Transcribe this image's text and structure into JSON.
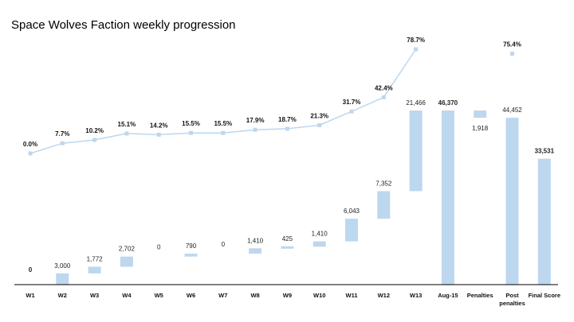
{
  "title": "Space Wolves Faction weekly progression",
  "colors": {
    "bar": "#bdd7ee",
    "line": "#bdd7ee",
    "marker": "#bdd7ee",
    "axis": "#000000"
  },
  "chart_data": {
    "type": "waterfall+line",
    "title": "Space Wolves Faction weekly progression",
    "categories": [
      "W1",
      "W2",
      "W3",
      "W4",
      "W5",
      "W6",
      "W7",
      "W8",
      "W9",
      "W10",
      "W11",
      "W12",
      "W13",
      "Aug-15",
      "Penalties",
      "Post penalties",
      "Final Score"
    ],
    "category_labels": [
      [
        "W1"
      ],
      [
        "W2"
      ],
      [
        "W3"
      ],
      [
        "W4"
      ],
      [
        "W5"
      ],
      [
        "W6"
      ],
      [
        "W7"
      ],
      [
        "W8"
      ],
      [
        "W9"
      ],
      [
        "W10"
      ],
      [
        "W11"
      ],
      [
        "W12"
      ],
      [
        "W13"
      ],
      [
        "Aug-15"
      ],
      [
        "Penalties"
      ],
      [
        "Post",
        "penalties"
      ],
      [
        "Final Score"
      ]
    ],
    "bars": [
      {
        "category": "W1",
        "start": 0,
        "end": 0,
        "label": "0",
        "total": true
      },
      {
        "category": "W2",
        "start": 0,
        "end": 3000,
        "label": "3,000",
        "total": false
      },
      {
        "category": "W3",
        "start": 3000,
        "end": 4772,
        "label": "1,772",
        "total": false
      },
      {
        "category": "W4",
        "start": 4772,
        "end": 7474,
        "label": "2,702",
        "total": false
      },
      {
        "category": "W5",
        "start": 7474,
        "end": 7474,
        "label": "0",
        "total": false
      },
      {
        "category": "W6",
        "start": 7474,
        "end": 8264,
        "label": "790",
        "total": false
      },
      {
        "category": "W7",
        "start": 8264,
        "end": 8264,
        "label": "0",
        "total": false
      },
      {
        "category": "W8",
        "start": 8264,
        "end": 9674,
        "label": "1,410",
        "total": false
      },
      {
        "category": "W9",
        "start": 9674,
        "end": 10099,
        "label": "425",
        "total": false
      },
      {
        "category": "W10",
        "start": 10099,
        "end": 11509,
        "label": "1,410",
        "total": false
      },
      {
        "category": "W11",
        "start": 11509,
        "end": 17552,
        "label": "6,043",
        "total": false
      },
      {
        "category": "W12",
        "start": 17552,
        "end": 24904,
        "label": "7,352",
        "total": false
      },
      {
        "category": "W13",
        "start": 24904,
        "end": 46370,
        "label": "21,466",
        "total": false
      },
      {
        "category": "Aug-15",
        "start": 0,
        "end": 46370,
        "label": "46,370",
        "total": true
      },
      {
        "category": "Penalties",
        "start": 44452,
        "end": 46370,
        "label": "1,918",
        "total": false
      },
      {
        "category": "Post penalties",
        "start": 0,
        "end": 44452,
        "label": "44,452",
        "total": false
      },
      {
        "category": "Final Score",
        "start": 0,
        "end": 33531,
        "label": "33,531",
        "total": true
      }
    ],
    "line_series": {
      "values": [
        0.0,
        7.7,
        10.2,
        15.1,
        14.2,
        15.5,
        15.5,
        17.9,
        18.7,
        21.3,
        31.7,
        42.4,
        78.7,
        null,
        null,
        75.4,
        null
      ],
      "labels": [
        "0.0%",
        "7.7%",
        "10.2%",
        "15.1%",
        "14.2%",
        "15.5%",
        "15.5%",
        "17.9%",
        "18.7%",
        "21.3%",
        "31.7%",
        "42.4%",
        "78.7%",
        "",
        "",
        "75.4%",
        ""
      ],
      "connected_until_index": 12
    },
    "bar_axis_range": [
      0,
      46370
    ],
    "line_axis_range": [
      0,
      78.7
    ],
    "legend": "none",
    "grid": false
  }
}
